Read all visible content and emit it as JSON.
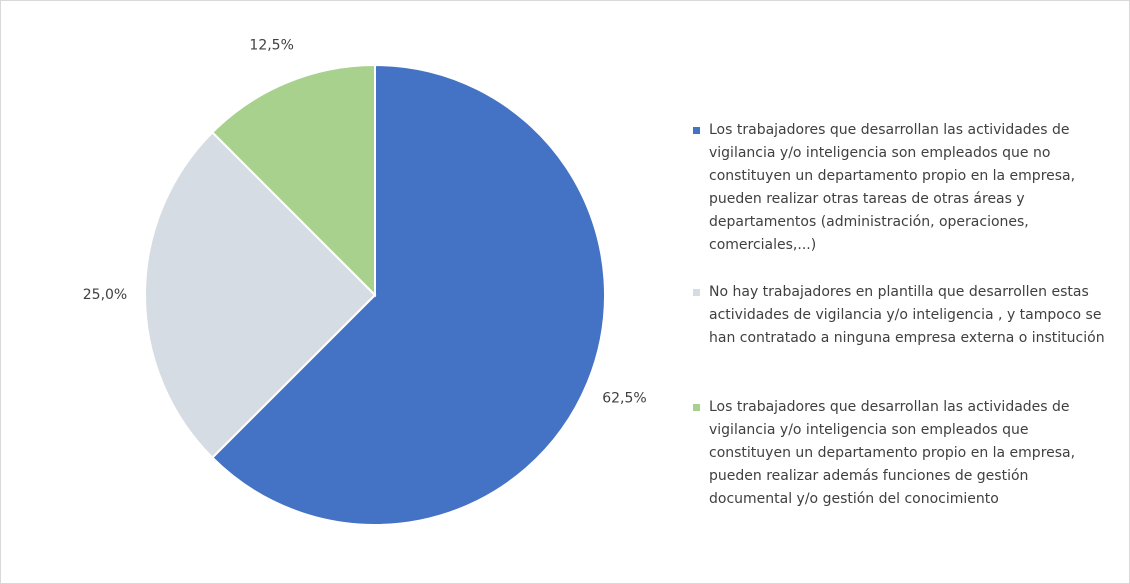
{
  "chart_data": {
    "type": "pie",
    "categories": [
      "Los trabajadores que desarrollan las actividades de vigilancia y/o inteligencia son empleados que no constituyen un departamento propio en la empresa, pueden realizar otras tareas de otras áreas y departamentos (administración, operaciones, comerciales,...)",
      "No hay trabajadores en plantilla que desarrollen estas actividades de vigilancia y/o inteligencia , y tampoco se han contratado a ninguna empresa externa o institución",
      "Los trabajadores que desarrollan las actividades de vigilancia y/o inteligencia son empleados que constituyen un departamento propio en la empresa, pueden realizar además funciones de gestión documental y/o gestión del conocimiento"
    ],
    "values": [
      62.5,
      25,
      12.5
    ],
    "value_labels": [
      "62,5%",
      "25,0%",
      "12,5%"
    ],
    "colors": [
      "#4472c4",
      "#d6dce4",
      "#a9d18e"
    ],
    "legend": "right"
  }
}
